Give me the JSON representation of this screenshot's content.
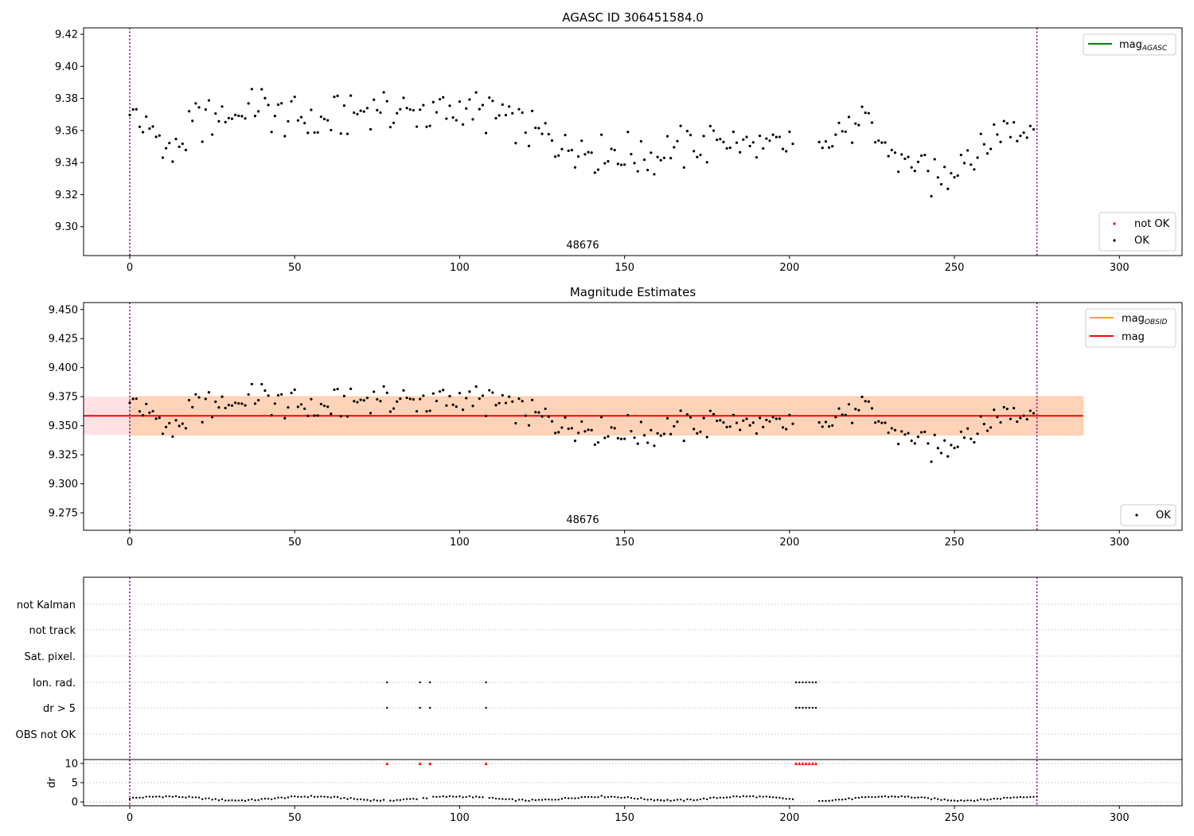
{
  "chart_data": [
    {
      "type": "scatter",
      "title": "AGASC ID 306451584.0",
      "xlim": [
        -14,
        319
      ],
      "ylim": [
        9.282,
        9.424
      ],
      "xticks": [
        0,
        50,
        100,
        150,
        200,
        250,
        300
      ],
      "yticks": [
        9.3,
        9.32,
        9.34,
        9.36,
        9.38,
        9.4,
        9.42
      ],
      "obsid_label": "48676",
      "vlines": [
        0,
        275
      ],
      "legend_top": [
        {
          "name": "mag_AGASC_base",
          "label": "mag",
          "sub": "AGASC",
          "color": "#008000"
        }
      ],
      "legend_bottom": [
        {
          "label": "not OK",
          "color": "#ff0000"
        },
        {
          "label": "OK",
          "color": "#000000"
        }
      ],
      "series": [
        {
          "name": "OK",
          "color": "#000000"
        }
      ]
    },
    {
      "type": "scatter",
      "title": "Magnitude Estimates",
      "xlim": [
        -14,
        319
      ],
      "ylim": [
        9.26,
        9.456
      ],
      "xticks": [
        0,
        50,
        100,
        150,
        200,
        250,
        300
      ],
      "yticks": [
        9.275,
        9.3,
        9.325,
        9.35,
        9.375,
        9.4,
        9.425,
        9.45
      ],
      "obsid_label": "48676",
      "vlines": [
        0,
        275
      ],
      "mean_mag": 9.3585,
      "band_outer": [
        9.342,
        9.375
      ],
      "band_inner": [
        9.342,
        9.375
      ],
      "band_x": [
        -14,
        289
      ],
      "legend_top": [
        {
          "label": "mag",
          "sub": "OBSID",
          "color": "#ffa500"
        },
        {
          "label": "mag",
          "sub": "",
          "color": "#ff0000"
        }
      ],
      "legend_bottom": [
        {
          "label": "OK",
          "color": "#000000"
        }
      ]
    },
    {
      "type": "scatter",
      "xlim": [
        -14,
        319
      ],
      "flag_labels": [
        "not Kalman",
        "not track",
        "Sat. pixel.",
        "Ion. rad.",
        "dr > 5",
        "OBS not OK"
      ],
      "flag_points": {
        "Ion. rad.": [
          78,
          88,
          91,
          108,
          202,
          203,
          204,
          205,
          206,
          207,
          208
        ],
        "dr > 5": [
          78,
          88,
          91,
          108,
          202,
          203,
          204,
          205,
          206,
          207,
          208
        ]
      },
      "dr": {
        "ylabel": "dr",
        "ylim": [
          -1,
          11
        ],
        "yticks": [
          0,
          5,
          10
        ],
        "xticks": [
          0,
          50,
          100,
          150,
          200,
          250,
          300
        ],
        "threshold_x": [
          78,
          88,
          91,
          108,
          202,
          203,
          204,
          205,
          206,
          207,
          208
        ],
        "vlines": [
          0,
          275
        ]
      }
    }
  ]
}
